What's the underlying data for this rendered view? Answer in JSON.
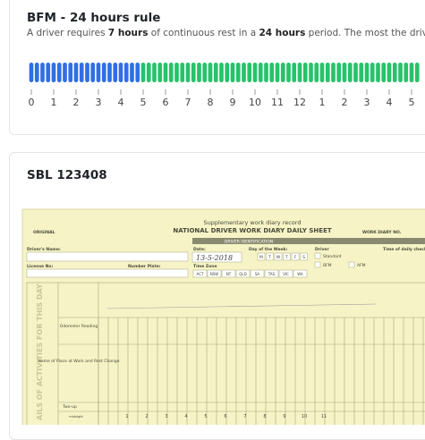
{
  "cards": [
    {
      "title": "BFM - 24 hours rule",
      "description": [
        {
          "text": "A driver requires ",
          "bold": false
        },
        {
          "text": "7 hours",
          "bold": true
        },
        {
          "text": " of continuous rest in a ",
          "bold": false
        },
        {
          "text": "24 hours",
          "bold": true
        },
        {
          "text": " period. The most the driver r",
          "bold": false
        }
      ],
      "timeline": {
        "range": [
          0,
          17.6
        ],
        "slots_per_hour": 4,
        "periods": [
          {
            "state": "work",
            "color": "#2f6fe4",
            "start": 0,
            "end": 5
          },
          {
            "state": "rest",
            "color": "#27c26a",
            "start": 5,
            "end": 17.6
          }
        ],
        "ticks": [
          {
            "value": 0,
            "label": "0"
          },
          {
            "value": 1,
            "label": "1"
          },
          {
            "value": 2,
            "label": "2"
          },
          {
            "value": 3,
            "label": "3"
          },
          {
            "value": 4,
            "label": "4"
          },
          {
            "value": 5,
            "label": "5"
          },
          {
            "value": 6,
            "label": "6"
          },
          {
            "value": 7,
            "label": "7"
          },
          {
            "value": 8,
            "label": "8"
          },
          {
            "value": 9,
            "label": "9"
          },
          {
            "value": 10,
            "label": "10"
          },
          {
            "value": 11,
            "label": "11"
          },
          {
            "value": 12,
            "label": "12"
          },
          {
            "value": 13,
            "label": "1"
          },
          {
            "value": 14,
            "label": "2"
          },
          {
            "value": 15,
            "label": "3"
          },
          {
            "value": 16,
            "label": "4"
          },
          {
            "value": 17,
            "label": "5"
          }
        ]
      }
    },
    {
      "title": "SBL 123408",
      "form": {
        "subtitle": "Supplementary work diary record",
        "heading": "NATIONAL DRIVER WORK DIARY DAILY SHEET",
        "copy": "ORIGINAL",
        "diary_no": "WORK DIARY NO.",
        "band": "DRIVER IDENTIFICATION",
        "driver_name": "Driver's Name:",
        "date": "Date:",
        "date_value": "13-5-2018",
        "day": "Day of the Week:",
        "days": [
          "M",
          "T",
          "W",
          "T",
          "F",
          "S"
        ],
        "driver": "Driver",
        "daily_check": "Time of daily check",
        "license": "License No:",
        "plate": "Number Plate:",
        "time_zone": "Time Zone",
        "states": [
          "ACT",
          "NSW",
          "NT",
          "QLD",
          "SA",
          "TAS",
          "VIC",
          "WA"
        ],
        "schemes": [
          "Standard",
          "BFM",
          "AFM"
        ],
        "side": "AILS OF ACTIVITIES FOR THIS DAY",
        "odometer": "Odometer Reading",
        "place": "Name of Place at Work and Rest Change",
        "two_up": "Two-up",
        "hours": [
          "midnight",
          "1",
          "2",
          "3",
          "4",
          "5",
          "6",
          "7",
          "8",
          "9",
          "10",
          "11"
        ]
      }
    }
  ]
}
